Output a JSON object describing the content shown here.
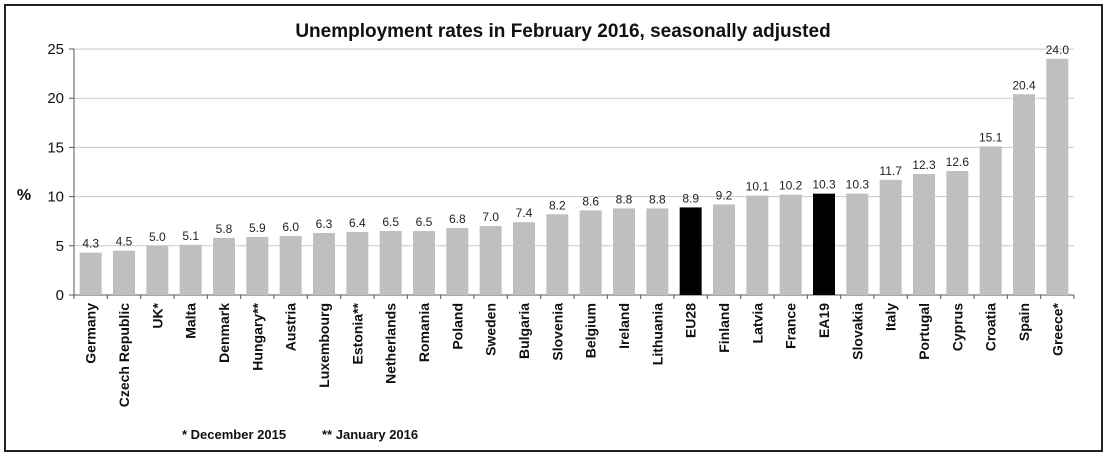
{
  "chart_data": {
    "type": "bar",
    "title": "Unemployment rates in February 2016, seasonally adjusted",
    "ylabel": "%",
    "xlabel": "",
    "ylim": [
      0,
      25
    ],
    "yticks": [
      0,
      5,
      10,
      15,
      20,
      25
    ],
    "categories": [
      "Germany",
      "Czech Republic",
      "UK*",
      "Malta",
      "Denmark",
      "Hungary**",
      "Austria",
      "Luxembourg",
      "Estonia**",
      "Netherlands",
      "Romania",
      "Poland",
      "Sweden",
      "Bulgaria",
      "Slovenia",
      "Belgium",
      "Ireland",
      "Lithuania",
      "EU28",
      "Finland",
      "Latvia",
      "France",
      "EA19",
      "Slovakia",
      "Italy",
      "Portugal",
      "Cyprus",
      "Croatia",
      "Spain",
      "Greece*"
    ],
    "values": [
      4.3,
      4.5,
      5.0,
      5.1,
      5.8,
      5.9,
      6.0,
      6.3,
      6.4,
      6.5,
      6.5,
      6.8,
      7.0,
      7.4,
      8.2,
      8.6,
      8.8,
      8.8,
      8.9,
      9.2,
      10.1,
      10.2,
      10.3,
      10.3,
      11.7,
      12.3,
      12.6,
      15.1,
      20.4,
      24.0
    ],
    "value_labels": [
      "4.3",
      "4.5",
      "5.0",
      "5.1",
      "5.8",
      "5.9",
      "6.0",
      "6.3",
      "6.4",
      "6.5",
      "6.5",
      "6.8",
      "7.0",
      "7.4",
      "8.2",
      "8.6",
      "8.8",
      "8.8",
      "8.9",
      "9.2",
      "10.1",
      "10.2",
      "10.3",
      "10.3",
      "11.7",
      "12.3",
      "12.6",
      "15.1",
      "20.4",
      "24.0"
    ],
    "highlight": [
      "EU28",
      "EA19"
    ],
    "grid": "horizontal",
    "colors": {
      "bar": "#bfbfbf",
      "highlight": "#000000",
      "grid": "#c8c8c8",
      "axis": "#555555"
    }
  },
  "footnotes": [
    "* December 2015",
    "** January 2016"
  ]
}
